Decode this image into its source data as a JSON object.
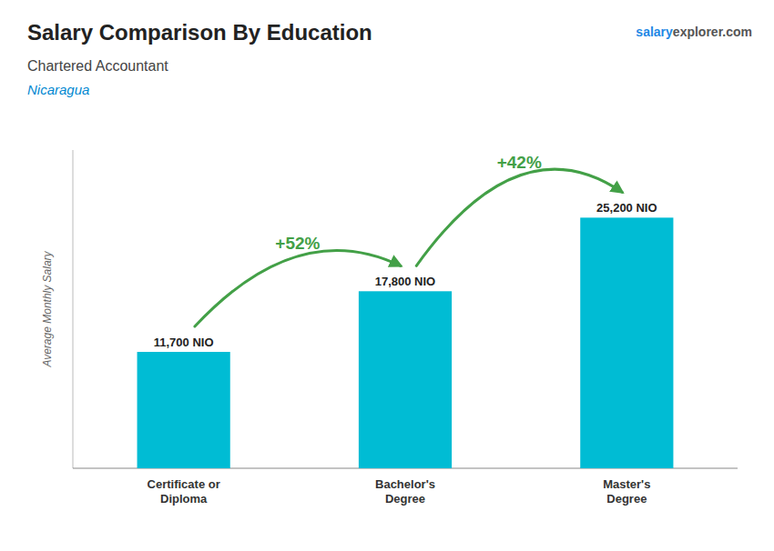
{
  "chart_data": {
    "type": "bar",
    "title": "Salary Comparison By Education",
    "subtitle": "Chartered Accountant",
    "annotations": [
      "Nicaragua",
      "salary",
      "explorer.com"
    ],
    "ylabel": "Average Monthly Salary",
    "categories": [
      "Certificate or\nDiploma",
      "Bachelor's\nDegree",
      "Master's\nDegree"
    ],
    "values": [
      11700,
      17800,
      25200
    ],
    "value_labels": [
      "11,700 NIO",
      "17,800 NIO",
      "25,200 NIO"
    ],
    "data_labels": true,
    "color": "#00bcd4",
    "ylim": [
      0,
      32000
    ],
    "grid": false,
    "tick_labels": "x",
    "arrows": [
      {
        "text": "+52%",
        "value": 52,
        "from": 0,
        "to": 1,
        "color": "#43a047"
      },
      {
        "text": "+42%",
        "value": 42,
        "from": 1,
        "to": 2,
        "color": "#43a047"
      }
    ]
  }
}
